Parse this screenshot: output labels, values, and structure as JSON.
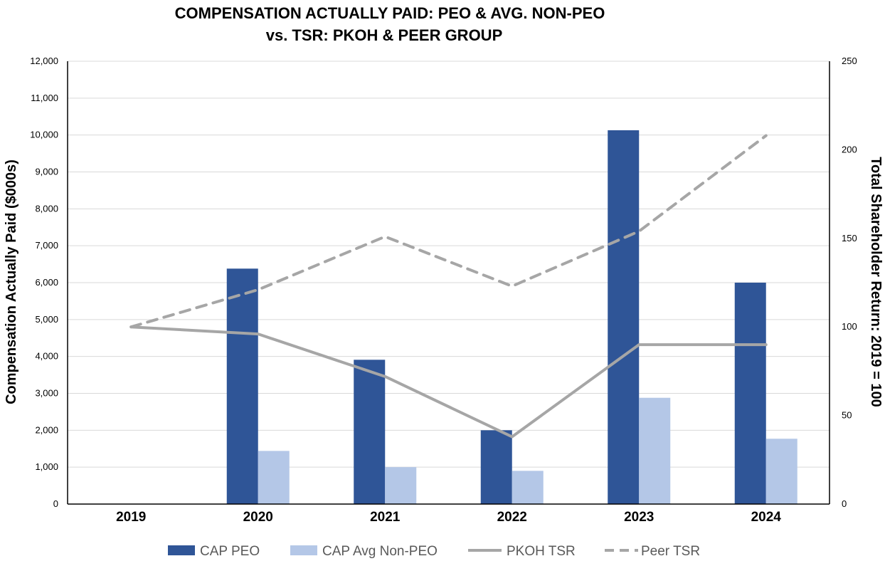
{
  "chart_data": {
    "type": "bar",
    "title": [
      "COMPENSATION ACTUALLY PAID: PEO & AVG. NON-PEO",
      "vs. TSR: PKOH & PEER GROUP"
    ],
    "categories": [
      "2019",
      "2020",
      "2021",
      "2022",
      "2023",
      "2024"
    ],
    "ylabel": "Compensation Actually Paid ($000s)",
    "y2label": "Total Shareholder Return: 2019 = 100",
    "ylim": [
      0,
      12000
    ],
    "y2lim": [
      0,
      250
    ],
    "yticks": [
      "0",
      "1,000",
      "2,000",
      "3,000",
      "4,000",
      "5,000",
      "6,000",
      "7,000",
      "8,000",
      "9,000",
      "10,000",
      "11,000",
      "12,000"
    ],
    "ytick_values": [
      0,
      1000,
      2000,
      3000,
      4000,
      5000,
      6000,
      7000,
      8000,
      9000,
      10000,
      11000,
      12000
    ],
    "y2ticks": [
      "0",
      "50",
      "100",
      "150",
      "200",
      "250"
    ],
    "y2tick_values": [
      0,
      50,
      100,
      150,
      200,
      250
    ],
    "grid": true,
    "legend_position": "bottom",
    "series": [
      {
        "name": "CAP PEO",
        "kind": "bar",
        "axis": "left",
        "color": "#2F5597",
        "values": [
          null,
          6380,
          3910,
          2000,
          10130,
          6000
        ]
      },
      {
        "name": "CAP Avg Non-PEO",
        "kind": "bar",
        "axis": "left",
        "color": "#B4C7E7",
        "values": [
          null,
          1440,
          1000,
          900,
          2880,
          1770
        ]
      },
      {
        "name": "PKOH TSR",
        "kind": "line",
        "style": "solid",
        "axis": "right",
        "color": "#A6A6A6",
        "values": [
          100,
          96,
          72,
          38,
          90,
          90
        ]
      },
      {
        "name": "Peer TSR",
        "kind": "line",
        "style": "dashed",
        "axis": "right",
        "color": "#A6A6A6",
        "values": [
          100,
          121,
          151,
          123,
          154,
          208
        ]
      }
    ]
  }
}
